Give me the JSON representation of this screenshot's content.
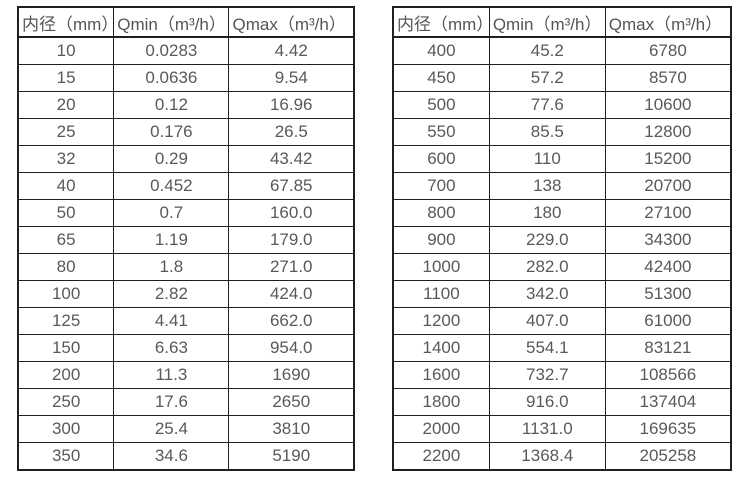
{
  "page": {
    "background": "#ffffff",
    "border_color": "#1f1f1f",
    "text_color": "#595959"
  },
  "tables": [
    {
      "name": "flow-rate-table-small-diameters",
      "headers": [
        "内径（mm）",
        "Qmin（m³/h）",
        "Qmax（m³/h）"
      ],
      "rows": [
        [
          "10",
          "0.0283",
          "4.42"
        ],
        [
          "15",
          "0.0636",
          "9.54"
        ],
        [
          "20",
          "0.12",
          "16.96"
        ],
        [
          "25",
          "0.176",
          "26.5"
        ],
        [
          "32",
          "0.29",
          "43.42"
        ],
        [
          "40",
          "0.452",
          "67.85"
        ],
        [
          "50",
          "0.7",
          "160.0"
        ],
        [
          "65",
          "1.19",
          "179.0"
        ],
        [
          "80",
          "1.8",
          "271.0"
        ],
        [
          "100",
          "2.82",
          "424.0"
        ],
        [
          "125",
          "4.41",
          "662.0"
        ],
        [
          "150",
          "6.63",
          "954.0"
        ],
        [
          "200",
          "11.3",
          "1690"
        ],
        [
          "250",
          "17.6",
          "2650"
        ],
        [
          "300",
          "25.4",
          "3810"
        ],
        [
          "350",
          "34.6",
          "5190"
        ]
      ]
    },
    {
      "name": "flow-rate-table-large-diameters",
      "headers": [
        "内径（mm）",
        "Qmin（m³/h）",
        "Qmax（m³/h）"
      ],
      "rows": [
        [
          "400",
          "45.2",
          "6780"
        ],
        [
          "450",
          "57.2",
          "8570"
        ],
        [
          "500",
          "77.6",
          "10600"
        ],
        [
          "550",
          "85.5",
          "12800"
        ],
        [
          "600",
          "110",
          "15200"
        ],
        [
          "700",
          "138",
          "20700"
        ],
        [
          "800",
          "180",
          "27100"
        ],
        [
          "900",
          "229.0",
          "34300"
        ],
        [
          "1000",
          "282.0",
          "42400"
        ],
        [
          "1100",
          "342.0",
          "51300"
        ],
        [
          "1200",
          "407.0",
          "61000"
        ],
        [
          "1400",
          "554.1",
          "83121"
        ],
        [
          "1600",
          "732.7",
          "108566"
        ],
        [
          "1800",
          "916.0",
          "137404"
        ],
        [
          "2000",
          "1131.0",
          "169635"
        ],
        [
          "2200",
          "1368.4",
          "205258"
        ]
      ]
    }
  ]
}
